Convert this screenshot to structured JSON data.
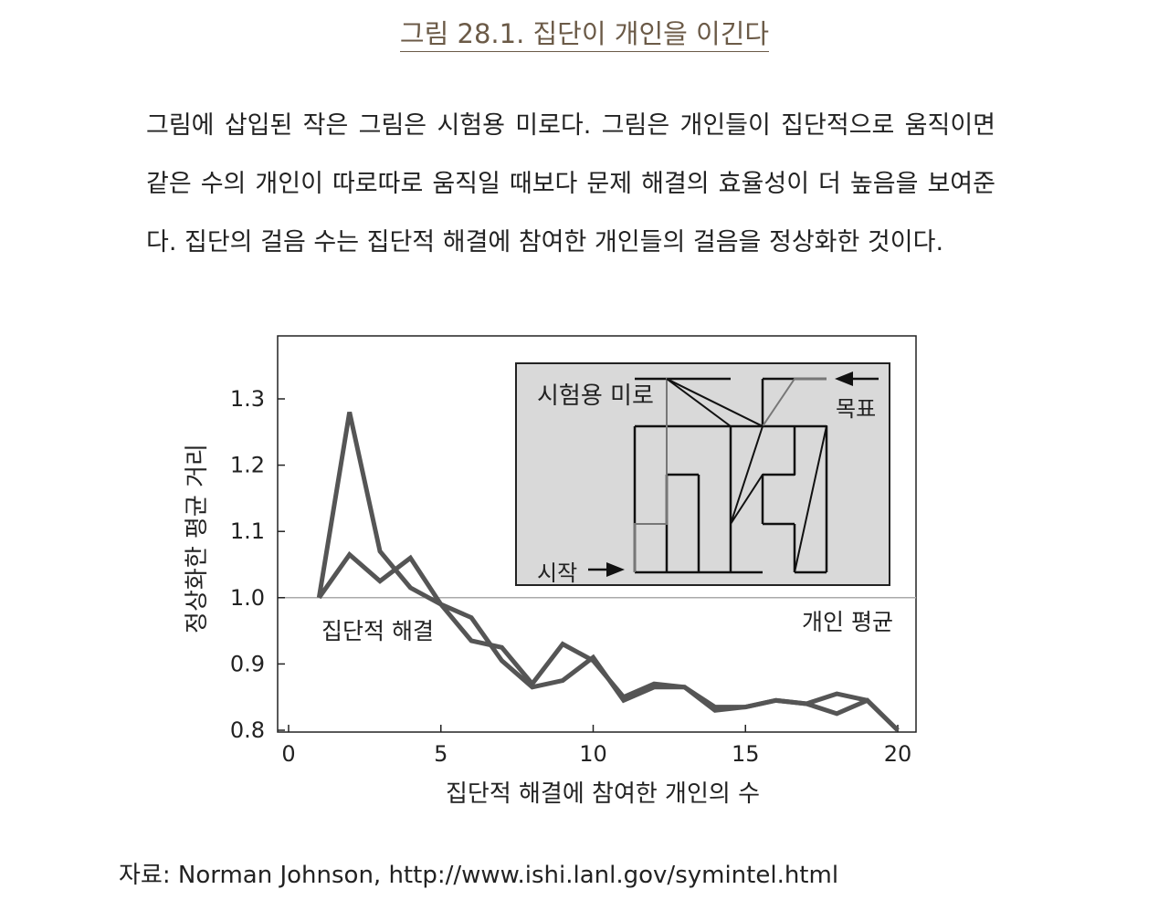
{
  "figure": {
    "title": "그림 28.1. 집단이 개인을 이긴다",
    "caption": "그림에 삽입된 작은 그림은 시험용 미로다. 그림은 개인들이 집단적으로 움직이면 같은 수의 개인이 따로따로 움직일 때보다 문제 해결의 효율성이 더 높음을 보여준다. 집단의 걸음 수는 집단적 해결에 참여한 개인들의 걸음을 정상화한 것이다.",
    "source": "자료: Norman Johnson, http://www.ishi.lanl.gov/symintel.html"
  },
  "chart_data": {
    "type": "line",
    "xlabel": "집단적 해결에 참여한 개인의 수",
    "ylabel": "정상화한 평균 거리",
    "xlim": [
      0,
      20
    ],
    "ylim": [
      0.8,
      1.35
    ],
    "xticks": [
      "0",
      "5",
      "10",
      "15",
      "20"
    ],
    "yticks": [
      "0.8",
      "0.9",
      "1.0",
      "1.1",
      "1.2",
      "1.3"
    ],
    "x": [
      1,
      2,
      3,
      4,
      5,
      6,
      7,
      8,
      9,
      10,
      11,
      12,
      13,
      14,
      15,
      16,
      17,
      18,
      19,
      20
    ],
    "series": [
      {
        "values": [
          1.0,
          1.28,
          1.07,
          1.015,
          0.99,
          0.935,
          0.925,
          0.87,
          0.93,
          0.905,
          0.85,
          0.87,
          0.865,
          0.835,
          0.835,
          0.845,
          0.84,
          0.825,
          0.845,
          0.8
        ]
      },
      {
        "values": [
          1.0,
          1.065,
          1.025,
          1.06,
          0.99,
          0.97,
          0.905,
          0.865,
          0.875,
          0.91,
          0.845,
          0.865,
          0.865,
          0.83,
          0.835,
          0.845,
          0.84,
          0.855,
          0.845,
          0.8
        ]
      }
    ],
    "reference_line": {
      "y": 1.0,
      "label": "개인 평균"
    },
    "annotation": "집단적 해결",
    "grid": false,
    "inset": {
      "label": "시험용 미로",
      "start_label": "시작",
      "goal_label": "목표"
    },
    "colors": {
      "series": "#555555",
      "reference": "#aaaaaa",
      "inset_bg": "#d9d9d9"
    }
  }
}
